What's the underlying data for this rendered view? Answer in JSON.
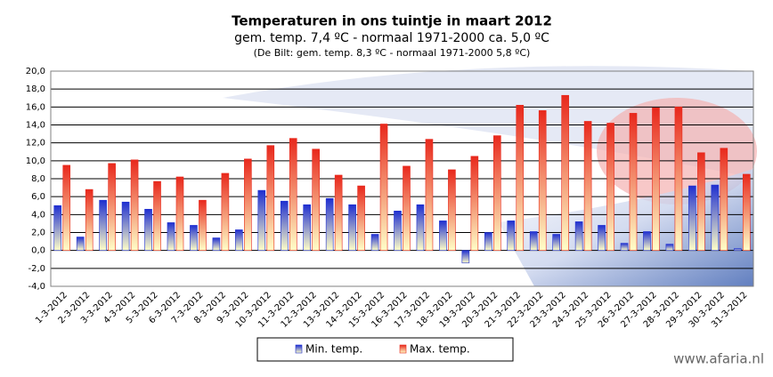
{
  "chart_data": {
    "type": "bar",
    "title": "Temperaturen in ons tuintje in maart 2012",
    "subtitle": "gem. temp. 7,4 ºC - normaal 1971-2000 ca. 5,0 ºC",
    "note": "(De Bilt: gem. temp. 8,3 ºC - normaal 1971-2000 5,8 ºC)",
    "watermark": "www.afaria.nl",
    "categories": [
      "1-3-2012",
      "2-3-2012",
      "3-3-2012",
      "4-3-2012",
      "5-3-2012",
      "6-3-2012",
      "7-3-2012",
      "8-3-2012",
      "9-3-2012",
      "10-3-2012",
      "11-3-2012",
      "12-3-2012",
      "13-3-2012",
      "14-3-2012",
      "15-3-2012",
      "16-3-2012",
      "17-3-2012",
      "18-3-2012",
      "19-3-2012",
      "20-3-2012",
      "21-3-2012",
      "22-3-2012",
      "23-3-2012",
      "24-3-2012",
      "25-3-2012",
      "26-3-2012",
      "27-3-2012",
      "28-3-2012",
      "29-3-2012",
      "30-3-2012",
      "31-3-2012"
    ],
    "series": [
      {
        "name": "Min. temp.",
        "color": "#1f2fd0",
        "values": [
          5.0,
          1.5,
          5.6,
          5.4,
          4.6,
          3.1,
          2.8,
          1.4,
          2.3,
          6.7,
          5.5,
          5.1,
          5.8,
          5.1,
          1.8,
          4.4,
          5.1,
          3.3,
          -1.4,
          2.0,
          3.3,
          2.1,
          1.8,
          3.2,
          2.8,
          0.8,
          2.1,
          0.7,
          7.2,
          7.3,
          0.2
        ]
      },
      {
        "name": "Max. temp.",
        "color": "#e8281c",
        "values": [
          9.5,
          6.8,
          9.7,
          10.1,
          7.7,
          8.2,
          5.6,
          8.6,
          10.2,
          11.7,
          12.5,
          11.3,
          8.4,
          7.2,
          14.1,
          9.4,
          12.4,
          9.0,
          10.5,
          12.8,
          16.2,
          15.6,
          17.3,
          14.4,
          14.2,
          15.3,
          15.9,
          16.0,
          10.9,
          11.4,
          8.5
        ]
      }
    ],
    "ylim": [
      -4,
      20
    ],
    "yticks": [
      {
        "value": -4,
        "label": "-4,0"
      },
      {
        "value": -2,
        "label": "-2,0"
      },
      {
        "value": 0,
        "label": "0,0"
      },
      {
        "value": 2,
        "label": "2,0"
      },
      {
        "value": 4,
        "label": "4,0"
      },
      {
        "value": 6,
        "label": "6,0"
      },
      {
        "value": 8,
        "label": "8,0"
      },
      {
        "value": 10,
        "label": "10,0"
      },
      {
        "value": 12,
        "label": "12,0"
      },
      {
        "value": 14,
        "label": "14,0"
      },
      {
        "value": 16,
        "label": "16,0"
      },
      {
        "value": 18,
        "label": "18,0"
      },
      {
        "value": 20,
        "label": "20,0"
      }
    ],
    "grid": true
  }
}
